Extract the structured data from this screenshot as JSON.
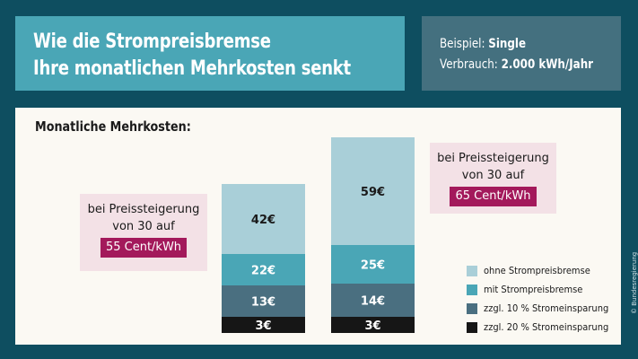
{
  "header": {
    "title_line1": "Wie die Strompreisbremse",
    "title_line2": "Ihre monatlichen Mehrkosten senkt",
    "example_label": "Beispiel:",
    "example_value": "Single",
    "consumption_label": "Verbrauch:",
    "consumption_value": "2.000 kWh/Jahr"
  },
  "credit": "© Bundesregierung",
  "colors": {
    "ohne": "#a9cfd8",
    "mit": "#4aa6b6",
    "zehn": "#4a6f80",
    "zwanzig": "#161616",
    "callout_bg": "#f3e1e6",
    "price_bg": "#a3195b"
  },
  "callouts": [
    {
      "line1": "bei Preissteigerung",
      "line2": "von 30 auf",
      "price": "55 Cent/kWh"
    },
    {
      "line1": "bei Preissteigerung",
      "line2": "von 30 auf",
      "price": "65 Cent/kWh"
    }
  ],
  "chart_data": {
    "type": "bar",
    "title": "Monatliche Mehrkosten:",
    "stacked": true,
    "categories": [
      "55 Cent/kWh",
      "65 Cent/kWh"
    ],
    "series": [
      {
        "name": "zzgl. 20 % Stromeinsparung",
        "values": [
          3,
          3
        ],
        "labels": [
          "3€",
          "3€"
        ],
        "color": "#161616"
      },
      {
        "name": "zzgl. 10 % Stromeinsparung",
        "values": [
          13,
          14
        ],
        "labels": [
          "13€",
          "14€"
        ],
        "color": "#4a6f80"
      },
      {
        "name": "mit Strompreisbremse",
        "values": [
          22,
          25
        ],
        "labels": [
          "22€",
          "25€"
        ],
        "color": "#4aa6b6"
      },
      {
        "name": "ohne Strompreisbremse",
        "values": [
          42,
          59
        ],
        "labels": [
          "42€",
          "59€"
        ],
        "color": "#a9cfd8"
      }
    ],
    "legend": [
      {
        "name": "ohne Strompreisbremse",
        "color": "#a9cfd8"
      },
      {
        "name": "mit Strompreisbremse",
        "color": "#4aa6b6"
      },
      {
        "name": "zzgl. 10 % Stromeinsparung",
        "color": "#4a6f80"
      },
      {
        "name": "zzgl. 20 % Stromeinsparung",
        "color": "#161616"
      }
    ],
    "legend_position": "bottom-right",
    "grid": false
  }
}
